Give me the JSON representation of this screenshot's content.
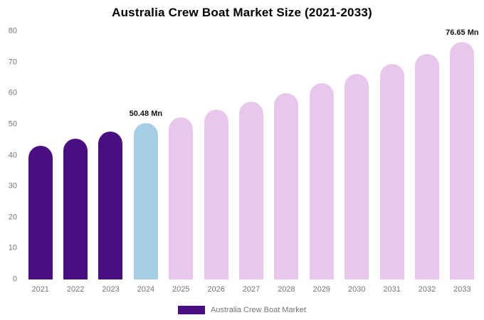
{
  "title": "Australia Crew Boat Market Size (2021-2033)",
  "chart_data": {
    "type": "bar",
    "title": "Australia Crew Boat Market Size (2021-2033)",
    "categories": [
      "2021",
      "2022",
      "2023",
      "2024",
      "2025",
      "2026",
      "2027",
      "2028",
      "2029",
      "2030",
      "2031",
      "2032",
      "2033"
    ],
    "values": [
      43.2,
      45.4,
      47.6,
      50.48,
      52.3,
      54.7,
      57.3,
      60.1,
      63.2,
      66.2,
      69.4,
      72.6,
      76.65
    ],
    "xlabel": "",
    "ylabel": "",
    "ylim": [
      0,
      80
    ],
    "yticks": [
      0,
      10,
      20,
      30,
      40,
      50,
      60,
      70,
      80
    ],
    "grid": false,
    "legend_position": "bottom",
    "bar_roles": [
      "historical",
      "historical",
      "historical",
      "current",
      "forecast",
      "forecast",
      "forecast",
      "forecast",
      "forecast",
      "forecast",
      "forecast",
      "forecast",
      "forecast"
    ],
    "role_colors": {
      "historical": "#4a0d82",
      "current": "#a5cde4",
      "forecast": "#e8c8ea"
    },
    "annotations": [
      {
        "category": "2024",
        "index": 3,
        "text": "50.48 Mn"
      },
      {
        "category": "2033",
        "index": 12,
        "text": "76.65 Mn"
      }
    ]
  },
  "legend": {
    "label": "Australia Crew Boat Market",
    "swatch_color": "#4a0d82"
  }
}
